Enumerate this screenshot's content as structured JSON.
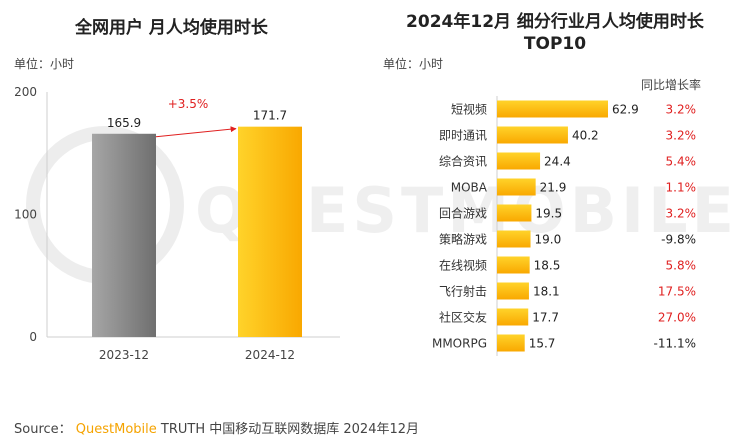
{
  "watermark": {
    "text": "QUESTMOBILE"
  },
  "colors": {
    "bar_gold_light": "#ffd32a",
    "bar_gold_dark": "#f9a800",
    "bar_gray_light": "#a6a6a6",
    "bar_gray_dark": "#6f6f6f",
    "growth_red": "#e02020",
    "text_dark": "#222222"
  },
  "left_chart": {
    "title": "全网用户 月人均使用时长",
    "unit": "单位：小时"
  },
  "right_chart": {
    "title_line1": "2024年12月 细分行业月人均使用时长",
    "title_line2": "TOP10",
    "unit": "单位：小时",
    "yoy_header": "同比增长率"
  },
  "source": {
    "prefix": "Source：",
    "brand": "QuestMobile",
    "suffix": " TRUTH 中国移动互联网数据库 2024年12月"
  },
  "chart_data": [
    {
      "type": "bar",
      "title": "全网用户 月人均使用时长",
      "ylabel": "单位：小时",
      "categories": [
        "2023-12",
        "2024-12"
      ],
      "values": [
        165.9,
        171.7
      ],
      "value_labels": [
        "165.9",
        "171.7"
      ],
      "ylim": [
        0,
        200
      ],
      "yticks": [
        0,
        100,
        200
      ],
      "annotation": "+3.5%",
      "grid": false,
      "legend": "none"
    },
    {
      "type": "bar",
      "orientation": "horizontal",
      "title": "2024年12月 细分行业月人均使用时长 TOP10",
      "ylabel": "单位：小时",
      "categories": [
        "短视频",
        "即时通讯",
        "综合资讯",
        "MOBA",
        "回合游戏",
        "策略游戏",
        "在线视频",
        "飞行射击",
        "社区交友",
        "MMORPG"
      ],
      "values": [
        62.9,
        40.2,
        24.4,
        21.9,
        19.5,
        19.0,
        18.5,
        18.1,
        17.7,
        15.7
      ],
      "value_labels": [
        "62.9",
        "40.2",
        "24.4",
        "21.9",
        "19.5",
        "19.0",
        "18.5",
        "18.1",
        "17.7",
        "15.7"
      ],
      "yoy_header": "同比增长率",
      "yoy": [
        "3.2%",
        "3.2%",
        "5.4%",
        "1.1%",
        "3.2%",
        "-9.8%",
        "5.8%",
        "17.5%",
        "27.0%",
        "-11.1%"
      ],
      "grid": false,
      "legend": "none"
    }
  ]
}
